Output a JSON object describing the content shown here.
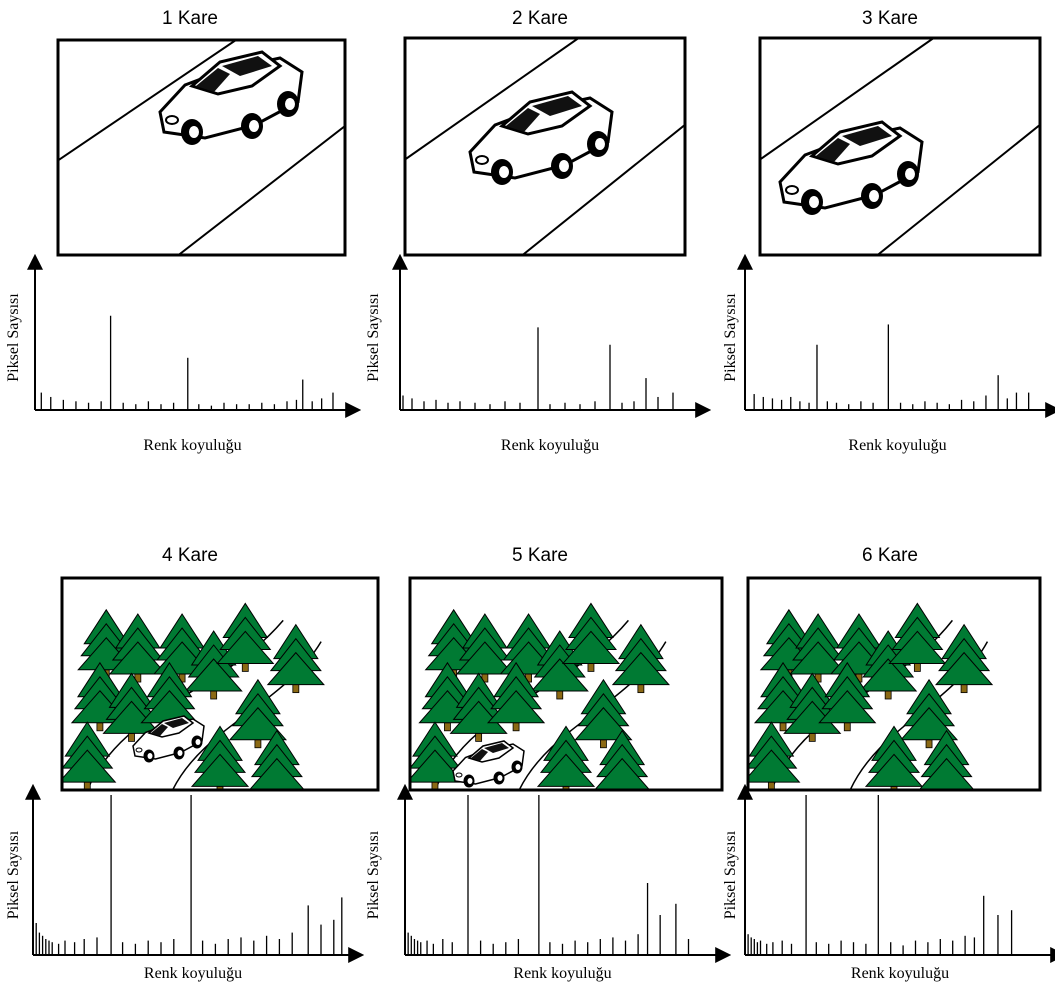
{
  "chart_data": [
    {
      "type": "bar",
      "title": "1 Kare",
      "xlabel": "Renk koyuluğu",
      "ylabel": "Piksel Saysısı",
      "color": "#000000",
      "xlim": [
        0,
        100
      ],
      "ylim": [
        0,
        100
      ],
      "x": [
        2,
        5,
        9,
        13,
        17,
        21,
        24,
        28,
        32,
        36,
        40,
        44,
        48.5,
        52,
        56,
        60,
        64,
        68,
        72,
        76,
        80,
        83,
        85,
        88,
        91,
        94.6
      ],
      "values": [
        12,
        9,
        7,
        6,
        5,
        6,
        65,
        5,
        4,
        6,
        4,
        5,
        36,
        4,
        3,
        5,
        4,
        4,
        5,
        4,
        6,
        7,
        21,
        6,
        8,
        12
      ]
    },
    {
      "type": "bar",
      "title": "2 Kare",
      "xlabel": "Renk koyuluğu",
      "ylabel": "Piksel Saysısı",
      "color": "#000000",
      "xlim": [
        0,
        100
      ],
      "ylim": [
        0,
        100
      ],
      "x": [
        1,
        4,
        8,
        12,
        16,
        20,
        25,
        30,
        35,
        40,
        46,
        50,
        55,
        60,
        65,
        70,
        74,
        78,
        82,
        86,
        91
      ],
      "values": [
        10,
        8,
        6,
        7,
        5,
        6,
        5,
        4,
        6,
        5,
        57,
        4,
        5,
        4,
        6,
        45,
        5,
        6,
        22,
        9,
        12
      ]
    },
    {
      "type": "bar",
      "title": "3 Kare",
      "xlabel": "Renk koyuluğu",
      "ylabel": "Piksel Saysısı",
      "color": "#000000",
      "xlim": [
        0,
        100
      ],
      "ylim": [
        0,
        100
      ],
      "x": [
        3,
        6,
        9,
        12,
        15,
        18,
        21,
        23.6,
        27,
        30,
        34,
        38,
        42,
        47,
        51,
        55,
        59,
        63,
        67,
        71,
        75,
        79,
        83,
        86,
        89,
        93
      ],
      "values": [
        11,
        9,
        8,
        7,
        9,
        6,
        5,
        45,
        6,
        5,
        4,
        6,
        5,
        59,
        5,
        4,
        6,
        5,
        4,
        7,
        6,
        10,
        24,
        8,
        12,
        12
      ]
    },
    {
      "type": "bar",
      "title": "4 Kare",
      "xlabel": "Renk koyuluğu",
      "ylabel": "Piksel Saysısı",
      "color": "#000000",
      "xlim": [
        0,
        100
      ],
      "ylim": [
        0,
        100
      ],
      "x": [
        1,
        2,
        3,
        4,
        5,
        6,
        8,
        10,
        13,
        16,
        20,
        24.4,
        28,
        32,
        36,
        40,
        44,
        49.4,
        53,
        57,
        61,
        65,
        69,
        73,
        77,
        81,
        86,
        90,
        94,
        96.5
      ],
      "values": [
        20,
        14,
        12,
        10,
        9,
        8,
        7,
        9,
        8,
        10,
        11,
        100,
        8,
        7,
        9,
        8,
        10,
        100,
        9,
        7,
        10,
        11,
        9,
        12,
        10,
        14,
        31,
        19,
        22,
        36
      ]
    },
    {
      "type": "bar",
      "title": "5 Kare",
      "xlabel": "Renk koyuluğu",
      "ylabel": "Piksel Saysısı",
      "color": "#000000",
      "xlim": [
        0,
        100
      ],
      "ylim": [
        0,
        100
      ],
      "x": [
        1,
        2,
        3,
        4,
        5,
        7,
        9,
        12,
        15,
        20,
        24,
        28,
        32,
        36,
        42.5,
        46,
        50,
        54,
        58,
        62,
        66,
        70,
        74,
        77,
        81,
        86,
        90
      ],
      "values": [
        14,
        12,
        10,
        9,
        8,
        9,
        7,
        10,
        8,
        100,
        9,
        7,
        8,
        10,
        100,
        8,
        7,
        9,
        8,
        10,
        11,
        9,
        13,
        45,
        25,
        32,
        10
      ]
    },
    {
      "type": "bar",
      "title": "6 Kare",
      "xlabel": "Renk koyuluğu",
      "ylabel": "Piksel Saysısı",
      "color": "#000000",
      "xlim": [
        0,
        100
      ],
      "ylim": [
        0,
        100
      ],
      "x": [
        1,
        2,
        3,
        4,
        5,
        7,
        9,
        12,
        15,
        19.7,
        23,
        27,
        31,
        35,
        39,
        43,
        47,
        51,
        55,
        59,
        63,
        67,
        71,
        74,
        77,
        81.6,
        86
      ],
      "values": [
        13,
        11,
        10,
        8,
        9,
        7,
        8,
        9,
        7,
        100,
        8,
        7,
        9,
        8,
        7,
        100,
        8,
        6,
        9,
        8,
        10,
        9,
        12,
        11,
        37,
        25,
        28
      ]
    }
  ]
}
